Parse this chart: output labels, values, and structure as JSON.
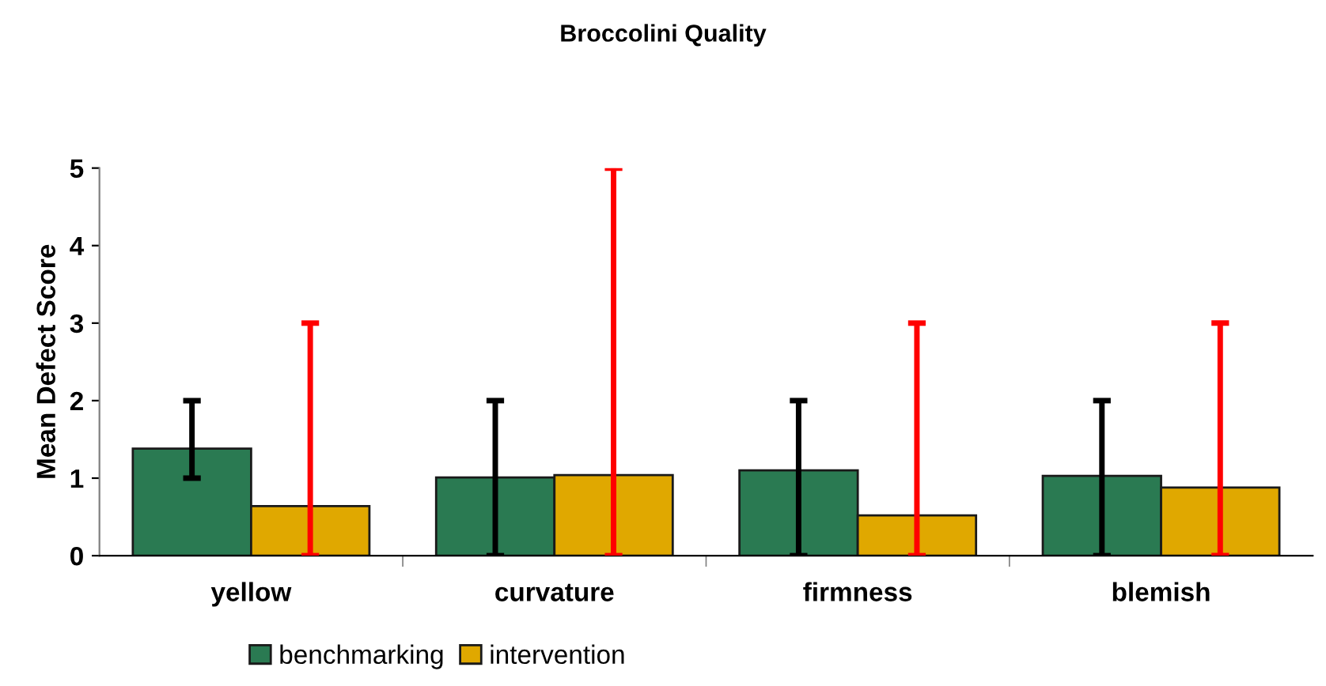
{
  "chart_data": {
    "type": "bar",
    "title": "Broccolini Quality",
    "ylabel": "Mean Defect Score",
    "categories": [
      "yellow",
      "curvature",
      "firmness",
      "blemish"
    ],
    "series": [
      {
        "name": "benchmarking",
        "color": "#2a7a52",
        "values": [
          1.38,
          1.01,
          1.1,
          1.03
        ],
        "errors": [
          [
            1,
            2
          ],
          [
            0,
            2
          ],
          [
            0,
            2
          ],
          [
            0,
            2
          ]
        ]
      },
      {
        "name": "intervention",
        "color": "#e0a800",
        "values": [
          0.64,
          1.04,
          0.52,
          0.88
        ],
        "errors": [
          [
            0,
            3
          ],
          [
            0,
            5
          ],
          [
            0,
            3
          ],
          [
            0,
            3
          ]
        ]
      }
    ],
    "ylim": [
      0,
      5
    ],
    "yticks": [
      0,
      1,
      2,
      3,
      4,
      5
    ],
    "grid": false,
    "legend": "bottom"
  }
}
